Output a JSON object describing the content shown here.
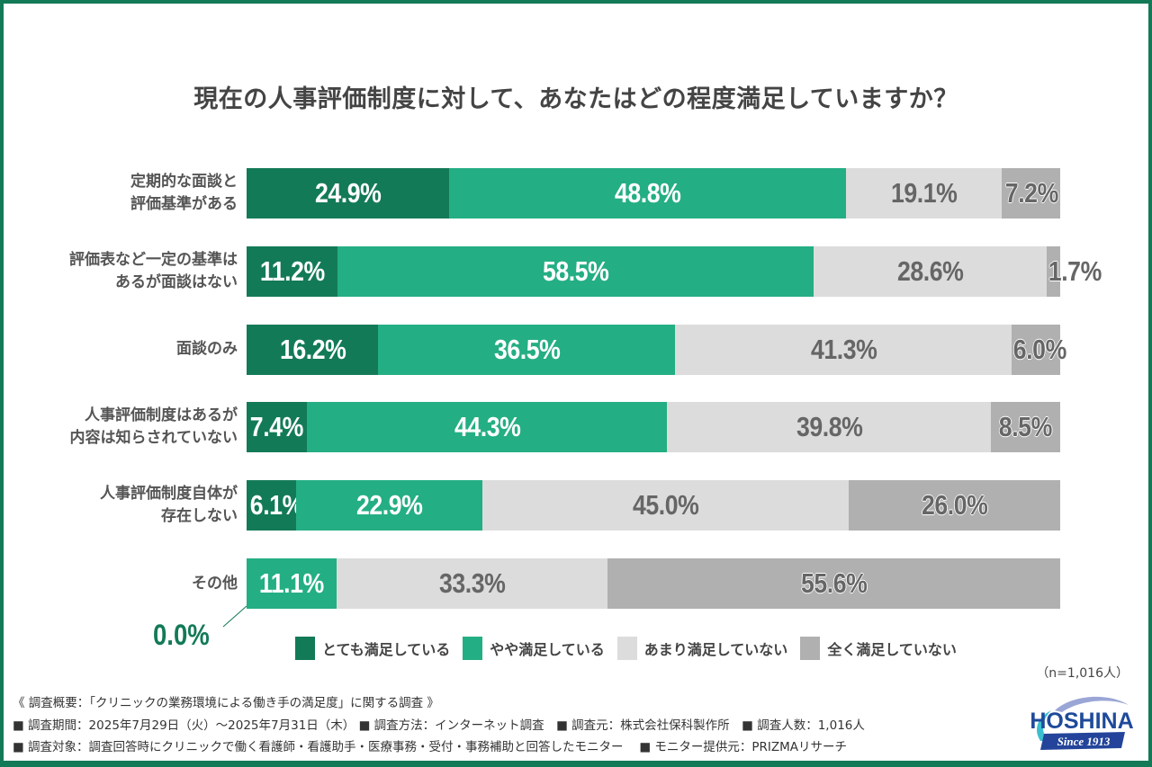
{
  "chart_data": {
    "type": "bar",
    "orientation": "horizontal-stacked-100",
    "title": "現在の人事評価制度に対して、あなたはどの程度満足していますか？",
    "categories": [
      [
        "定期的な面談と",
        "評価基準がある"
      ],
      [
        "評価表など一定の基準は",
        "あるが面談はない"
      ],
      [
        "面談のみ"
      ],
      [
        "人事評価制度はあるが",
        "内容は知らされていない"
      ],
      [
        "人事評価制度自体が",
        "存在しない"
      ],
      [
        "その他"
      ]
    ],
    "series": [
      {
        "name": "とても満足している",
        "color": "#137a57",
        "values": [
          24.9,
          11.2,
          16.2,
          7.4,
          6.1,
          0.0
        ]
      },
      {
        "name": "やや満足している",
        "color": "#24ae83",
        "values": [
          48.8,
          58.5,
          36.5,
          44.3,
          22.9,
          11.1
        ]
      },
      {
        "name": "あまり満足していない",
        "color": "#dcdcdc",
        "values": [
          19.1,
          28.6,
          41.3,
          39.8,
          45.0,
          33.3
        ]
      },
      {
        "name": "全く満足していない",
        "color": "#b0b0b0",
        "values": [
          7.2,
          1.7,
          6.0,
          8.5,
          26.0,
          55.6
        ]
      }
    ],
    "value_labels": [
      [
        "24.9%",
        "48.8%",
        "19.1%",
        "7.2%"
      ],
      [
        "11.2%",
        "58.5%",
        "28.6%",
        "1.7%"
      ],
      [
        "16.2%",
        "36.5%",
        "41.3%",
        "6.0%"
      ],
      [
        "7.4%",
        "44.3%",
        "39.8%",
        "8.5%"
      ],
      [
        "6.1%",
        "22.9%",
        "45.0%",
        "26.0%"
      ],
      [
        "0.0%",
        "11.1%",
        "33.3%",
        "55.6%"
      ]
    ],
    "xlim": [
      0,
      100
    ],
    "legend_position": "bottom",
    "grid": false,
    "xlabel": "",
    "ylabel": ""
  },
  "sample_size": "（n=1,016人）",
  "notes": {
    "heading": "《 調査概要：「クリニックの業務環境による働き手の満足度」に関する調査 》",
    "line1": "■ 調査期間：2025年7月29日（火）～2025年7月31日（木） ■ 調査方法：インターネット調査　■ 調査元：株式会社保科製作所　■ 調査人数：1,016人",
    "line2": "■ 調査対象：調査回答時にクリニックで働く看護師・看護助手・医療事務・受付・事務補助と回答したモニター　 ■ モニター提供元：PRIZMAリサーチ"
  },
  "logo": {
    "name": "HOSHINA",
    "tagline": "Since 1913",
    "colors": {
      "text": "#1e4a9a",
      "swoosh": "#3bbfd0",
      "banner": "#23449a"
    }
  }
}
